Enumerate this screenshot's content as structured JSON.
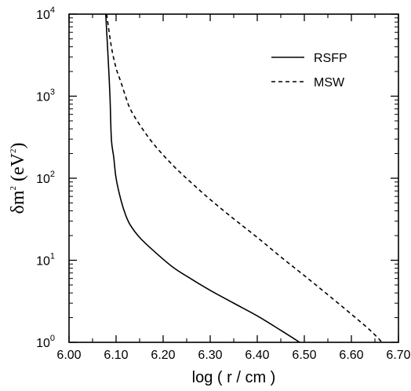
{
  "chart_data": {
    "type": "line",
    "title": "",
    "xlabel": "log ( r / cm )",
    "ylabel": {
      "prefix": "δm",
      "sup1": "2",
      "mid": " (eV",
      "sup2": "2",
      "suffix": ")"
    },
    "xlim": [
      6.0,
      6.7
    ],
    "ylim": [
      1,
      10000
    ],
    "yscale": "log",
    "grid": false,
    "legend_position": "top-right",
    "x_ticks": [
      "6.00",
      "6.10",
      "6.20",
      "6.30",
      "6.40",
      "6.50",
      "6.60",
      "6.70"
    ],
    "y_ticks": [
      {
        "base": "10",
        "exp": "0"
      },
      {
        "base": "10",
        "exp": "1"
      },
      {
        "base": "10",
        "exp": "2"
      },
      {
        "base": "10",
        "exp": "3"
      },
      {
        "base": "10",
        "exp": "4"
      }
    ],
    "series": [
      {
        "name": "RSFP",
        "style": "solid",
        "color": "#000000",
        "x": [
          6.078,
          6.083,
          6.087,
          6.09,
          6.095,
          6.1,
          6.11,
          6.12,
          6.13,
          6.15,
          6.18,
          6.22,
          6.26,
          6.3,
          6.35,
          6.4,
          6.45,
          6.49
        ],
        "y": [
          10000,
          3000,
          1000,
          300,
          180,
          100,
          55,
          36,
          27,
          19,
          13,
          8.3,
          5.9,
          4.3,
          3.0,
          2.1,
          1.4,
          1.0
        ]
      },
      {
        "name": "MSW",
        "style": "dashed",
        "color": "#000000",
        "x": [
          6.08,
          6.09,
          6.1,
          6.11,
          6.12,
          6.13,
          6.15,
          6.18,
          6.22,
          6.26,
          6.3,
          6.35,
          6.4,
          6.45,
          6.5,
          6.55,
          6.6,
          6.64,
          6.665
        ],
        "y": [
          10000,
          4000,
          2200,
          1500,
          1000,
          700,
          450,
          260,
          145,
          88,
          55,
          32,
          19,
          11,
          6.5,
          3.8,
          2.2,
          1.4,
          1.0
        ]
      }
    ]
  }
}
